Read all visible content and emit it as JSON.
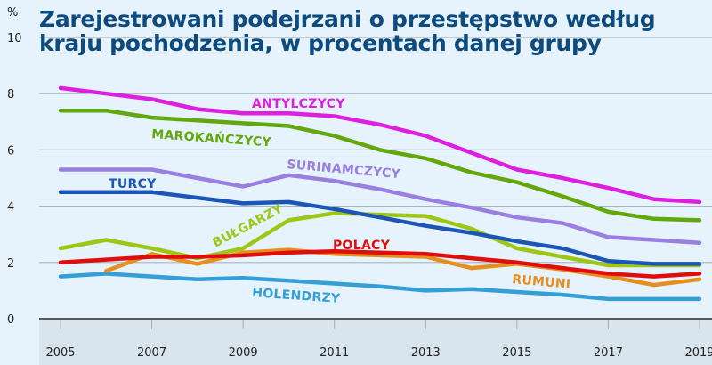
{
  "chart_data": {
    "type": "line",
    "title": "Zarejestrowani podejrzani o przestępstwo według kraju pochodzenia, w procentach danej grupy",
    "title_lines": [
      "Zarejestrowani podejrzani o przestępstwo według",
      "kraju pochodzenia, w procentach danej grupy"
    ],
    "ylabel": "%",
    "xlabel": "",
    "ylim": [
      0,
      10
    ],
    "yticks": [
      0,
      2,
      4,
      6,
      8,
      10
    ],
    "xlim": [
      2005,
      2019
    ],
    "xticks": [
      2005,
      2007,
      2009,
      2011,
      2013,
      2015,
      2017,
      2019
    ],
    "x": [
      2005,
      2006,
      2007,
      2008,
      2009,
      2010,
      2011,
      2012,
      2013,
      2014,
      2015,
      2016,
      2017,
      2018,
      2019
    ],
    "grid": true,
    "legend": "inline labels",
    "series": [
      {
        "name": "ANTYLCZYCY",
        "color": "#dd1fe0",
        "values": [
          8.2,
          8.0,
          7.8,
          7.45,
          7.3,
          7.3,
          7.2,
          6.9,
          6.5,
          5.9,
          5.3,
          5.0,
          4.65,
          4.25,
          4.15
        ]
      },
      {
        "name": "MAROKAŃCZYCY",
        "color": "#62a80c",
        "values": [
          7.4,
          7.4,
          7.15,
          7.05,
          6.95,
          6.85,
          6.5,
          6.0,
          5.7,
          5.2,
          4.85,
          4.35,
          3.8,
          3.55,
          3.5
        ]
      },
      {
        "name": "SURINAMCZYCY",
        "color": "#9a7ee0",
        "values": [
          5.3,
          5.3,
          5.3,
          5.0,
          4.7,
          5.1,
          4.9,
          4.6,
          4.25,
          3.95,
          3.6,
          3.4,
          2.9,
          2.8,
          2.7
        ]
      },
      {
        "name": "TURCY",
        "color": "#1c55b8",
        "values": [
          4.5,
          4.5,
          4.5,
          4.3,
          4.1,
          4.15,
          3.9,
          3.6,
          3.3,
          3.05,
          2.75,
          2.5,
          2.05,
          1.95,
          1.95
        ]
      },
      {
        "name": "BUŁGARZY",
        "color": "#9ec615",
        "values": [
          2.5,
          2.8,
          2.5,
          2.15,
          2.5,
          3.5,
          3.75,
          3.7,
          3.65,
          3.2,
          2.5,
          2.2,
          1.9,
          1.9,
          1.9
        ]
      },
      {
        "name": "RUMUNI",
        "color": "#e48f1e",
        "values": [
          null,
          1.7,
          2.3,
          1.95,
          2.35,
          2.45,
          2.3,
          2.25,
          2.2,
          1.8,
          1.95,
          1.75,
          1.5,
          1.2,
          1.4
        ]
      },
      {
        "name": "POLACY",
        "color": "#e00d0d",
        "values": [
          2.0,
          2.1,
          2.2,
          2.2,
          2.25,
          2.35,
          2.4,
          2.35,
          2.3,
          2.15,
          2.0,
          1.8,
          1.6,
          1.5,
          1.6
        ]
      },
      {
        "name": "HOLENDRZY",
        "color": "#339fd6",
        "values": [
          1.5,
          1.6,
          1.5,
          1.4,
          1.45,
          1.35,
          1.25,
          1.15,
          1.0,
          1.05,
          0.95,
          0.85,
          0.7,
          0.7,
          0.7
        ]
      }
    ]
  }
}
